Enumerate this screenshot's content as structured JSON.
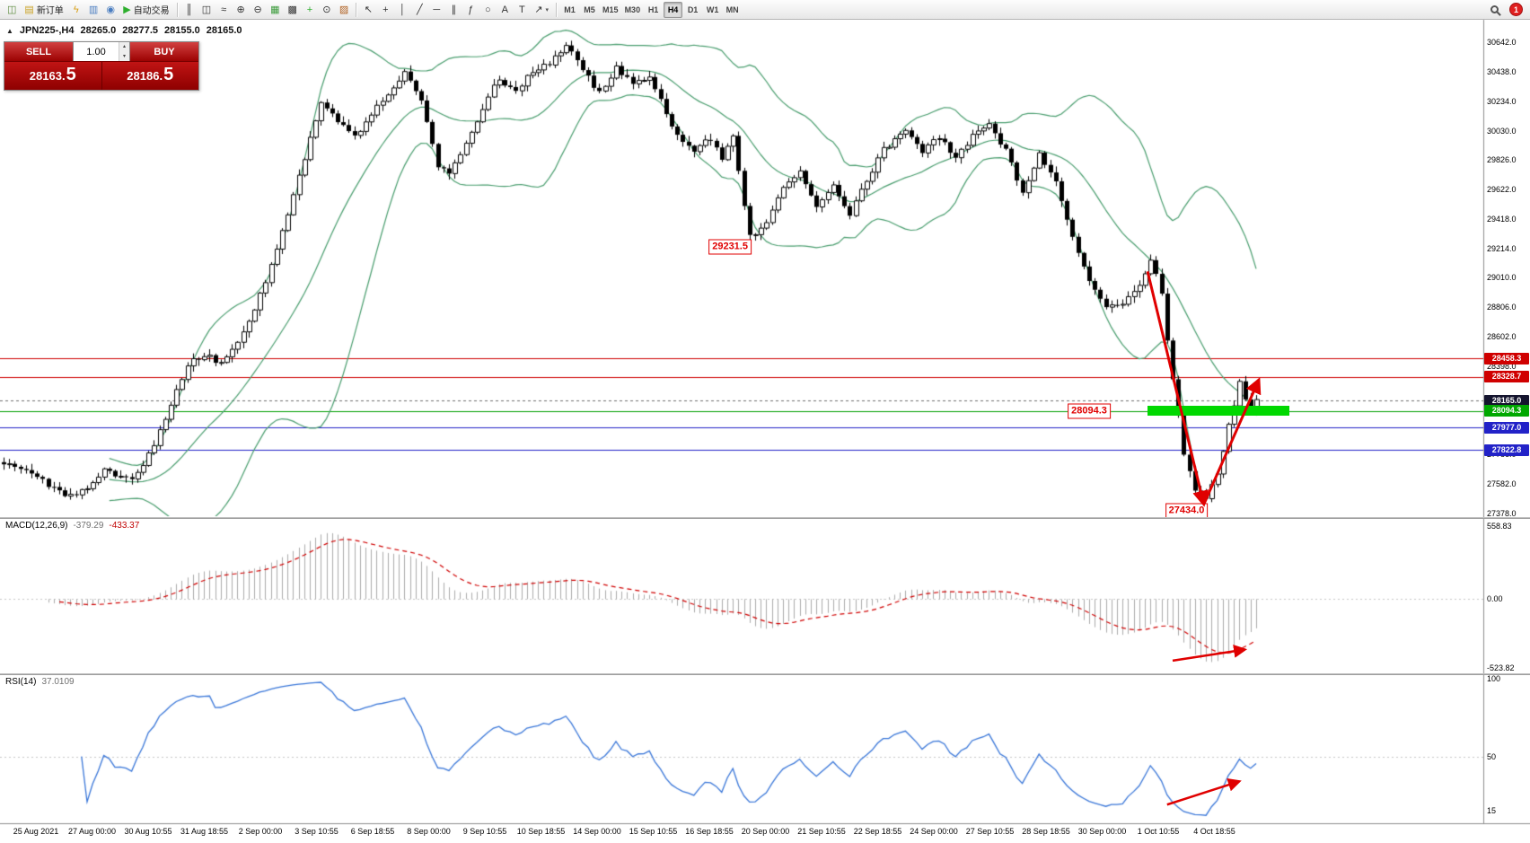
{
  "toolbar": {
    "groups": [
      {
        "items": [
          {
            "name": "new-chart",
            "glyph": "◫",
            "color": "#5a8a3a"
          },
          {
            "name": "new-order",
            "glyph": "▤",
            "color": "#c8a020",
            "label": "新订单"
          },
          {
            "name": "market-watch",
            "glyph": "ϟ",
            "color": "#d8a018"
          },
          {
            "name": "data-window",
            "glyph": "▥",
            "color": "#4a7dc0"
          },
          {
            "name": "navigator",
            "glyph": "◉",
            "color": "#4a7dc0"
          },
          {
            "name": "autotrade",
            "glyph": "▶",
            "color": "#2eaf2e",
            "label": "自动交易"
          }
        ]
      },
      {
        "items": [
          {
            "name": "chart-bars",
            "glyph": "║"
          },
          {
            "name": "chart-candles",
            "glyph": "◫"
          },
          {
            "name": "chart-line",
            "glyph": "≈"
          },
          {
            "name": "zoom-in",
            "glyph": "⊕"
          },
          {
            "name": "zoom-out",
            "glyph": "⊖"
          },
          {
            "name": "tile-windows",
            "glyph": "▦",
            "color": "#3a9a3a"
          },
          {
            "name": "auto-arrange",
            "glyph": "▩"
          },
          {
            "name": "indicators",
            "glyph": "+",
            "color": "#2eaf2e"
          },
          {
            "name": "periods",
            "glyph": "⊙"
          },
          {
            "name": "templates",
            "glyph": "▨",
            "color": "#b06020"
          }
        ]
      },
      {
        "items": [
          {
            "name": "cursor",
            "glyph": "↖"
          },
          {
            "name": "crosshair",
            "glyph": "+"
          },
          {
            "name": "vertical-line",
            "glyph": "│"
          },
          {
            "name": "trendline",
            "glyph": "╱"
          },
          {
            "name": "horizontal-line",
            "glyph": "─"
          },
          {
            "name": "equidistant-channel",
            "glyph": "∥"
          },
          {
            "name": "fibonacci",
            "glyph": "ƒ"
          },
          {
            "name": "shapes",
            "glyph": "○"
          },
          {
            "name": "text",
            "glyph": "A"
          },
          {
            "name": "label",
            "glyph": "T"
          },
          {
            "name": "arrows-tool",
            "glyph": "↗",
            "dropdown": true
          }
        ]
      }
    ],
    "timeframes": [
      {
        "label": "M1"
      },
      {
        "label": "M5"
      },
      {
        "label": "M15"
      },
      {
        "label": "M30"
      },
      {
        "label": "H1"
      },
      {
        "label": "H4",
        "active": true
      },
      {
        "label": "D1"
      },
      {
        "label": "W1"
      },
      {
        "label": "MN"
      }
    ],
    "badge": "1"
  },
  "symbol_bar": {
    "symbol": "JPN225-,H4",
    "open": "28265.0",
    "high": "28277.5",
    "low": "28155.0",
    "close": "28165.0"
  },
  "trade_panel": {
    "sell_label": "SELL",
    "buy_label": "BUY",
    "volume": "1.00",
    "sell_price": {
      "main": "28163.",
      "big": "5"
    },
    "buy_price": {
      "main": "28186.",
      "big": "5"
    }
  },
  "chart": {
    "price_ticks": [
      30642.0,
      30438.0,
      30234.0,
      30030.0,
      29826.0,
      29622.0,
      29418.0,
      29214.0,
      29010.0,
      28806.0,
      28602.0,
      28398.0,
      27786.0,
      27582.0,
      27378.0
    ],
    "hlines": [
      {
        "price": 28458.3,
        "label": "28458.3",
        "color": "#d00000",
        "tag": "#d00000",
        "style": "solid"
      },
      {
        "price": 28328.7,
        "label": "28328.7",
        "color": "#d00000",
        "tag": "#d00000",
        "style": "solid"
      },
      {
        "price": 28165.0,
        "label": "28165.0",
        "color": "#707070",
        "tag": "#14142e",
        "style": "dash"
      },
      {
        "price": 28094.3,
        "label": "28094.3",
        "color": "#00a000",
        "tag": "#00a800",
        "style": "solid"
      },
      {
        "price": 27977.0,
        "label": "27977.0",
        "color": "#2222c8",
        "tag": "#2222c8",
        "style": "solid"
      },
      {
        "price": 27822.8,
        "label": "27822.8",
        "color": "#2222c8",
        "tag": "#2222c8",
        "style": "solid"
      }
    ],
    "annotations": [
      {
        "label": "29231.5",
        "bar": 130.5,
        "price": 29230
      },
      {
        "label": "28094.3",
        "bar": 195.0,
        "price": 28094.3
      },
      {
        "label": "27434.0",
        "bar": 212.5,
        "price": 27400
      }
    ],
    "zone": {
      "bar_start": 205.5,
      "bar_end": 231,
      "price": 28094.3,
      "half_pts": 36,
      "color": "#00d800"
    },
    "arrows": {
      "main": [
        {
          "name": "reversal-arrow-down",
          "bar1": 205.5,
          "p1": 29060,
          "bar2": 215.6,
          "p2": 27445
        },
        {
          "name": "reversal-arrow-up",
          "bar1": 215.6,
          "p1": 27445,
          "bar2": 225.5,
          "p2": 28310
        }
      ],
      "macd": [
        {
          "name": "macd-arrow",
          "bar1": 210,
          "v1": -470,
          "bar2": 223,
          "v2": -385
        }
      ],
      "rsi": [
        {
          "name": "rsi-arrow",
          "bar1": 209,
          "v1": 19,
          "bar2": 222,
          "v2": 34
        }
      ]
    }
  },
  "macd_panel": {
    "title": "MACD(12,26,9)",
    "value_main": "-379.29",
    "value_signal": "-433.37",
    "axis": [
      {
        "label": "558.83",
        "value": 558.83
      },
      {
        "label": "0.00",
        "value": 0
      },
      {
        "label": "-523.82",
        "value": -523.82
      }
    ]
  },
  "rsi_panel": {
    "title": "RSI(14)",
    "value": "37.0109",
    "axis": [
      {
        "label": "100",
        "value": 100
      },
      {
        "label": "50",
        "value": 50
      },
      {
        "label": "15",
        "value": 15
      }
    ]
  },
  "time_axis": [
    "25 Aug 2021",
    "27 Aug 00:00",
    "30 Aug 10:55",
    "31 Aug 18:55",
    "2 Sep 00:00",
    "3 Sep 10:55",
    "6 Sep 18:55",
    "8 Sep 00:00",
    "9 Sep 10:55",
    "10 Sep 18:55",
    "14 Sep 00:00",
    "15 Sep 10:55",
    "16 Sep 18:55",
    "20 Sep 00:00",
    "21 Sep 10:55",
    "22 Sep 18:55",
    "24 Sep 00:00",
    "27 Sep 10:55",
    "28 Sep 18:55",
    "30 Sep 00:00",
    "1 Oct 10:55",
    "4 Oct 18:55"
  ],
  "colors": {
    "bull": "#ffffff",
    "bear": "#000000",
    "outline": "#000000",
    "bollinger": "#4a9e6f",
    "macd_hist": "#ababab",
    "macd_signal": "#d00000",
    "rsi_line": "#3a77d9",
    "grid": "#c8c8c8",
    "arrow": "#e00000"
  },
  "chart_data": {
    "type": "candlestick",
    "symbol": "JPN225",
    "timeframe": "H4",
    "bar_count": 226,
    "ylim": [
      27363,
      30805
    ],
    "macd_ylim": [
      -560,
      620
    ],
    "rsi_ylim": [
      7,
      103
    ],
    "bollinger": {
      "period": 20,
      "deviation": 2
    },
    "key_levels": {
      "resistance": [
        28458.3,
        28328.7
      ],
      "bid": 28165.0,
      "support_zone": 28094.3,
      "supports": [
        27977.0,
        27822.8
      ],
      "swing_low": 27434.0,
      "swing_high_label": 29231.5
    },
    "waypoints": [
      [
        0,
        27730
      ],
      [
        4,
        27690
      ],
      [
        8,
        27580
      ],
      [
        12,
        27500
      ],
      [
        15,
        27560
      ],
      [
        18,
        27680
      ],
      [
        21,
        27620
      ],
      [
        24,
        27650
      ],
      [
        27,
        27850
      ],
      [
        30,
        28150
      ],
      [
        33,
        28420
      ],
      [
        36,
        28480
      ],
      [
        39,
        28430
      ],
      [
        42,
        28550
      ],
      [
        45,
        28800
      ],
      [
        48,
        29100
      ],
      [
        51,
        29450
      ],
      [
        54,
        29850
      ],
      [
        57,
        30250
      ],
      [
        60,
        30100
      ],
      [
        63,
        29990
      ],
      [
        66,
        30150
      ],
      [
        69,
        30300
      ],
      [
        72,
        30430
      ],
      [
        75,
        30250
      ],
      [
        78,
        29800
      ],
      [
        80,
        29730
      ],
      [
        83,
        29950
      ],
      [
        86,
        30200
      ],
      [
        89,
        30400
      ],
      [
        92,
        30300
      ],
      [
        95,
        30450
      ],
      [
        98,
        30500
      ],
      [
        101,
        30640
      ],
      [
        104,
        30450
      ],
      [
        107,
        30300
      ],
      [
        110,
        30480
      ],
      [
        113,
        30350
      ],
      [
        116,
        30420
      ],
      [
        119,
        30150
      ],
      [
        122,
        29950
      ],
      [
        124,
        29900
      ],
      [
        127,
        29980
      ],
      [
        129,
        29850
      ],
      [
        131,
        30000
      ],
      [
        134,
        29300
      ],
      [
        137,
        29400
      ],
      [
        140,
        29650
      ],
      [
        143,
        29750
      ],
      [
        146,
        29500
      ],
      [
        149,
        29650
      ],
      [
        152,
        29450
      ],
      [
        155,
        29700
      ],
      [
        158,
        29900
      ],
      [
        162,
        30050
      ],
      [
        165,
        29900
      ],
      [
        168,
        30000
      ],
      [
        171,
        29850
      ],
      [
        174,
        30000
      ],
      [
        177,
        30080
      ],
      [
        180,
        29900
      ],
      [
        183,
        29600
      ],
      [
        186,
        29870
      ],
      [
        189,
        29700
      ],
      [
        192,
        29300
      ],
      [
        195,
        29000
      ],
      [
        198,
        28800
      ],
      [
        201,
        28850
      ],
      [
        204,
        28950
      ],
      [
        206,
        29150
      ],
      [
        208,
        28900
      ],
      [
        210,
        28300
      ],
      [
        212,
        27800
      ],
      [
        214,
        27560
      ],
      [
        216,
        27500
      ],
      [
        218,
        27650
      ],
      [
        220,
        28000
      ],
      [
        222,
        28280
      ],
      [
        224,
        28100
      ],
      [
        225,
        28165
      ]
    ]
  }
}
